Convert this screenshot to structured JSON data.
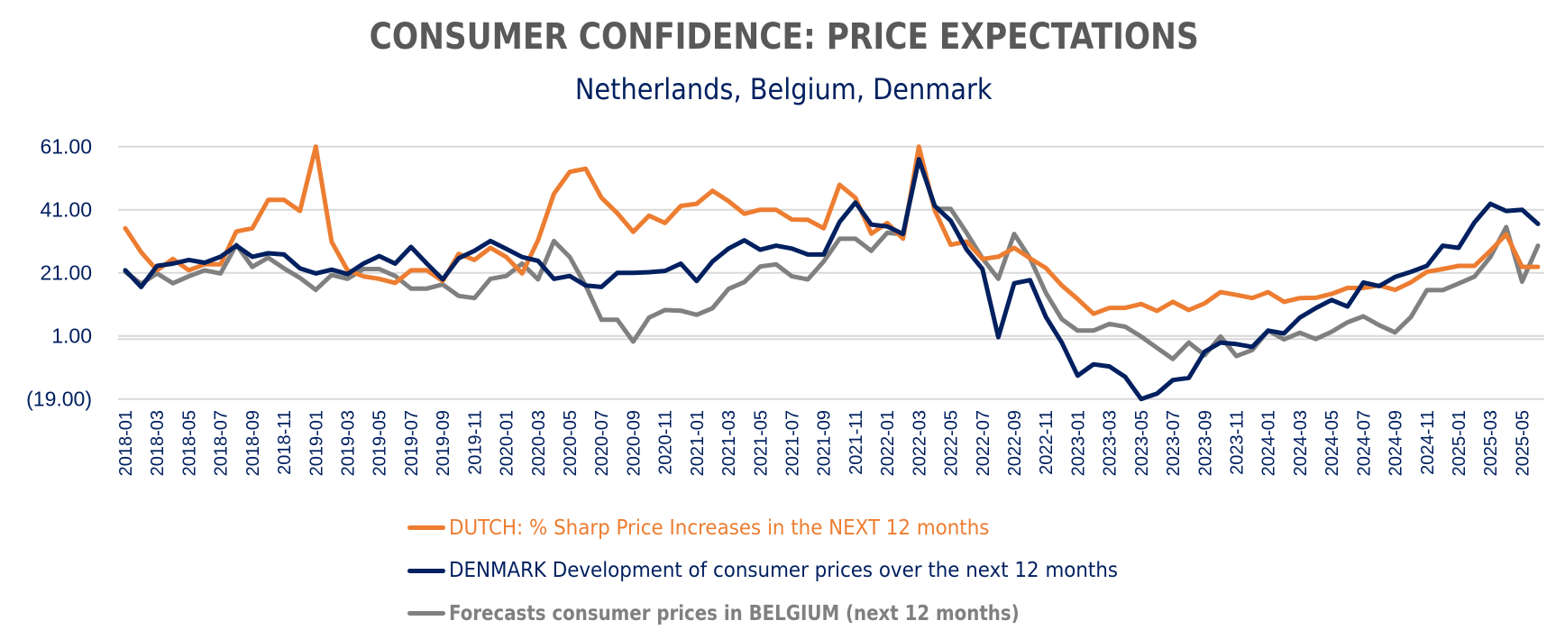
{
  "chart_data": {
    "type": "line",
    "title": "CONSUMER CONFIDENCE: PRICE EXPECTATIONS",
    "subtitle": "Netherlands, Belgium, Denmark",
    "xlabel": "",
    "ylabel": "",
    "ylim": [
      -19,
      61
    ],
    "yticks": [
      61,
      41,
      21,
      1,
      -19
    ],
    "ytick_labels": [
      "61.00",
      "41.00",
      "21.00",
      "1.00",
      "(19.00)"
    ],
    "grid": true,
    "legend_position": "bottom",
    "x": [
      "2018-01",
      "2018-02",
      "2018-03",
      "2018-04",
      "2018-05",
      "2018-06",
      "2018-07",
      "2018-08",
      "2018-09",
      "2018-10",
      "2018-11",
      "2018-12",
      "2019-01",
      "2019-02",
      "2019-03",
      "2019-04",
      "2019-05",
      "2019-06",
      "2019-07",
      "2019-08",
      "2019-09",
      "2019-10",
      "2019-11",
      "2019-12",
      "2020-01",
      "2020-02",
      "2020-03",
      "2020-04",
      "2020-05",
      "2020-06",
      "2020-07",
      "2020-08",
      "2020-09",
      "2020-10",
      "2020-11",
      "2020-12",
      "2021-01",
      "2021-02",
      "2021-03",
      "2021-04",
      "2021-05",
      "2021-06",
      "2021-07",
      "2021-08",
      "2021-09",
      "2021-10",
      "2021-11",
      "2021-12",
      "2022-01",
      "2022-02",
      "2022-03",
      "2022-04",
      "2022-05",
      "2022-06",
      "2022-07",
      "2022-08",
      "2022-09",
      "2022-10",
      "2022-11",
      "2022-12",
      "2023-01",
      "2023-02",
      "2023-03",
      "2023-04",
      "2023-05",
      "2023-06",
      "2023-07",
      "2023-08",
      "2023-09",
      "2023-10",
      "2023-11",
      "2023-12",
      "2024-01",
      "2024-02",
      "2024-03",
      "2024-04",
      "2024-05",
      "2024-06",
      "2024-07",
      "2024-08",
      "2024-09",
      "2024-10",
      "2024-11",
      "2024-12",
      "2025-01",
      "2025-02",
      "2025-03",
      "2025-04",
      "2025-05",
      "2025-06"
    ],
    "xtick_labels": [
      "2018-01",
      "2018-03",
      "2018-05",
      "2018-07",
      "2018-09",
      "2018-11",
      "2019-01",
      "2019-03",
      "2019-05",
      "2019-07",
      "2019-09",
      "2019-11",
      "2020-01",
      "2020-03",
      "2020-05",
      "2020-07",
      "2020-09",
      "2020-11",
      "2021-01",
      "2021-03",
      "2021-05",
      "2021-07",
      "2021-09",
      "2021-11",
      "2022-01",
      "2022-03",
      "2022-05",
      "2022-07",
      "2022-09",
      "2022-11",
      "2023-01",
      "2023-03",
      "2023-05",
      "2023-07",
      "2023-09",
      "2023-11",
      "2024-01",
      "2024-03",
      "2024-05",
      "2024-07",
      "2024-09",
      "2024-11",
      "2025-01",
      "2025-03",
      "2025-05"
    ],
    "series": [
      {
        "name": "DUTCH: % Sharp Price Increases in the NEXT 12 months",
        "color": "#ED7D31",
        "bold_label": false,
        "values": [
          35.1,
          27.5,
          21.8,
          25.4,
          21.8,
          23.7,
          23.7,
          34.1,
          35.1,
          44.1,
          44.1,
          40.6,
          61.0,
          30.8,
          21.8,
          19.9,
          19.1,
          17.8,
          21.8,
          21.8,
          18.4,
          27.0,
          25.1,
          28.9,
          26.0,
          20.8,
          31.3,
          46.0,
          53.0,
          54.0,
          44.8,
          39.9,
          34.0,
          39.1,
          36.8,
          42.2,
          42.9,
          47.0,
          43.7,
          39.7,
          41.0,
          41.0,
          37.9,
          37.8,
          35.1,
          48.9,
          44.8,
          33.4,
          36.8,
          31.8,
          61.0,
          40.8,
          29.9,
          30.9,
          25.4,
          26.1,
          28.9,
          25.6,
          22.5,
          17.0,
          12.7,
          8.0,
          9.9,
          9.9,
          11.1,
          8.9,
          11.8,
          9.2,
          11.3,
          14.9,
          14.0,
          13.0,
          14.9,
          11.8,
          13.0,
          13.1,
          14.3,
          16.2,
          16.2,
          17.0,
          15.6,
          18.0,
          21.3,
          22.2,
          23.2,
          23.2,
          28.0,
          33.2,
          22.9,
          22.9
        ]
      },
      {
        "name": "DENMARK Development of consumer prices over the next 12 months",
        "color": "#002060",
        "bold_label": false,
        "values": [
          21.8,
          16.5,
          23.2,
          23.9,
          25.1,
          24.2,
          26.1,
          29.6,
          26.1,
          27.2,
          26.8,
          22.4,
          20.8,
          22.0,
          20.6,
          23.9,
          26.3,
          23.9,
          29.2,
          23.9,
          18.9,
          25.6,
          28.0,
          31.1,
          28.6,
          26.0,
          24.8,
          19.1,
          20.0,
          17.0,
          16.5,
          21.0,
          21.0,
          21.2,
          21.6,
          23.9,
          18.4,
          24.6,
          28.7,
          31.3,
          28.3,
          29.6,
          28.7,
          26.8,
          26.8,
          37.1,
          43.3,
          36.3,
          35.7,
          33.3,
          57.0,
          42.2,
          37.5,
          28.4,
          22.2,
          0.6,
          17.7,
          18.7,
          7.0,
          -1.1,
          -11.6,
          -8.0,
          -8.7,
          -12.0,
          -19.0,
          -17.3,
          -13.0,
          -12.3,
          -4.0,
          -1.1,
          -1.6,
          -2.5,
          2.7,
          1.8,
          6.8,
          9.8,
          12.4,
          10.3,
          17.9,
          16.8,
          19.7,
          21.3,
          23.2,
          29.6,
          28.9,
          37.0,
          42.9,
          40.6,
          41.0,
          36.5
        ]
      },
      {
        "name": "Forecasts consumer prices in BELGIUM (next 12 months)",
        "color": "#808080",
        "bold_label": true,
        "values": [
          21.3,
          17.5,
          20.8,
          17.7,
          19.9,
          21.8,
          20.8,
          29.9,
          22.9,
          25.8,
          22.4,
          19.4,
          15.6,
          20.3,
          19.1,
          22.2,
          22.2,
          20.0,
          16.0,
          16.0,
          17.3,
          13.7,
          13.0,
          19.1,
          20.0,
          23.9,
          18.9,
          31.1,
          26.0,
          17.0,
          6.1,
          6.1,
          -0.8,
          6.8,
          9.2,
          9.0,
          7.7,
          9.8,
          15.9,
          18.1,
          23.0,
          23.7,
          19.9,
          18.9,
          24.6,
          31.8,
          31.8,
          28.0,
          33.7,
          33.2,
          58.7,
          41.3,
          41.3,
          33.7,
          25.6,
          19.1,
          33.3,
          25.6,
          14.6,
          6.3,
          2.7,
          2.7,
          4.8,
          3.9,
          0.8,
          -2.8,
          -6.3,
          -1.1,
          -5.1,
          0.8,
          -5.4,
          -3.5,
          2.7,
          -0.1,
          2.0,
          0.0,
          2.3,
          5.3,
          7.2,
          4.4,
          2.1,
          7.0,
          15.5,
          15.5,
          17.6,
          19.8,
          26.0,
          35.5,
          18.2,
          29.6
        ]
      }
    ]
  }
}
